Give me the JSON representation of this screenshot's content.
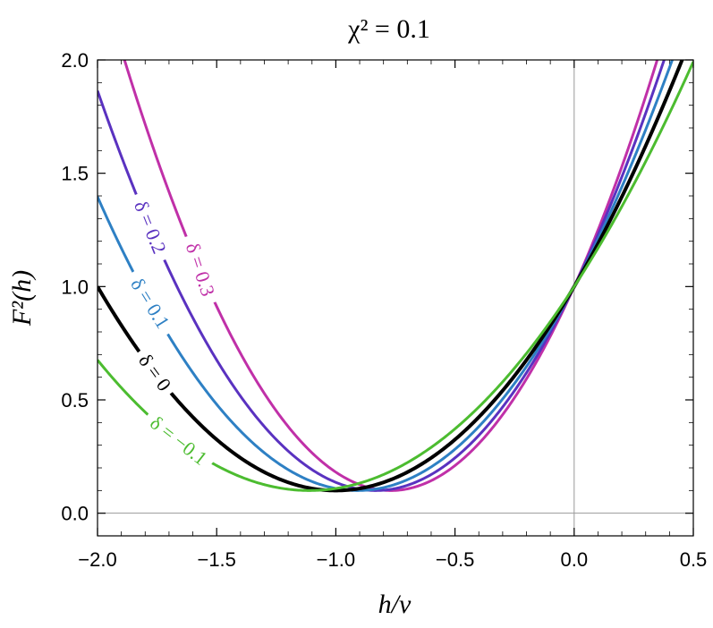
{
  "chart_data": {
    "type": "line",
    "title": "χ² = 0.1",
    "xlabel": "h/v",
    "ylabel": "F²(h)",
    "xlim": [
      -2.0,
      0.5
    ],
    "ylim": [
      -0.1,
      2.0
    ],
    "xticks": [
      "−2.0",
      "−1.5",
      "−1.0",
      "−0.5",
      "0.0",
      "0.5"
    ],
    "yticks": [
      "0.0",
      "0.5",
      "1.0",
      "1.5",
      "2.0"
    ],
    "chi2": 0.1,
    "series": [
      {
        "name": "δ = 0.3",
        "delta": 0.3,
        "color": "#c030a8",
        "labelX": -1.57,
        "labelAngle": 72
      },
      {
        "name": "δ = 0.2",
        "delta": 0.2,
        "color": "#5a32c0",
        "labelX": -1.78,
        "labelAngle": 68
      },
      {
        "name": "δ = 0.1",
        "delta": 0.1,
        "color": "#2e80c4",
        "labelX": -1.78,
        "labelAngle": 58
      },
      {
        "name": "δ = 0",
        "delta": 0.0,
        "color": "#000000",
        "labelX": -1.76,
        "labelAngle": 54
      },
      {
        "name": "δ = −0.1",
        "delta": -0.1,
        "color": "#4cbc30",
        "labelX": -1.66,
        "labelAngle": 38
      }
    ]
  }
}
